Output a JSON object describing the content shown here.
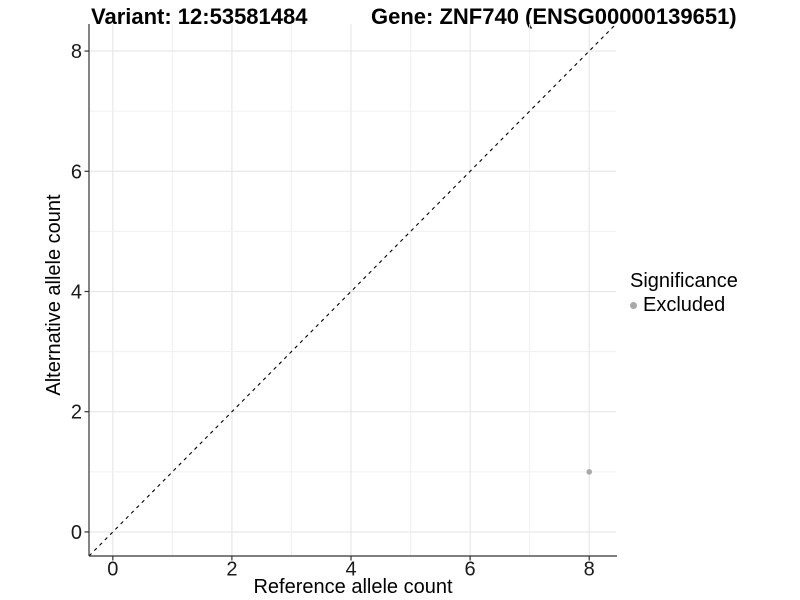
{
  "chart_data": {
    "type": "scatter",
    "titles": {
      "left": "Variant: 12:53581484",
      "right": "Gene: ZNF740 (ENSG00000139651)"
    },
    "xlabel": "Reference allele count",
    "ylabel": "Alternative allele count",
    "xlim": [
      -0.4,
      8.45
    ],
    "ylim": [
      -0.4,
      8.45
    ],
    "x_ticks": [
      0,
      2,
      4,
      6,
      8
    ],
    "y_ticks": [
      0,
      2,
      4,
      6,
      8
    ],
    "grid": {
      "minor_every": 1,
      "major_every": 2,
      "major_color": "#e3e3e3",
      "minor_color": "#f0f0f0",
      "from": 0,
      "to": 8
    },
    "reference_line": {
      "type": "identity",
      "slope": 1,
      "intercept": 0,
      "style": "dashed",
      "color": "#000000"
    },
    "series": [
      {
        "name": "Excluded",
        "color": "#a9a9a9",
        "points": [
          [
            8,
            1
          ]
        ]
      }
    ],
    "legend": {
      "title": "Significance",
      "position": "right",
      "items": [
        {
          "label": "Excluded",
          "color": "#a9a9a9",
          "marker": "circle"
        }
      ]
    },
    "axis": {
      "line_color": "#333333",
      "tick_color": "#333333",
      "label_color": "#1a1a1a"
    }
  }
}
